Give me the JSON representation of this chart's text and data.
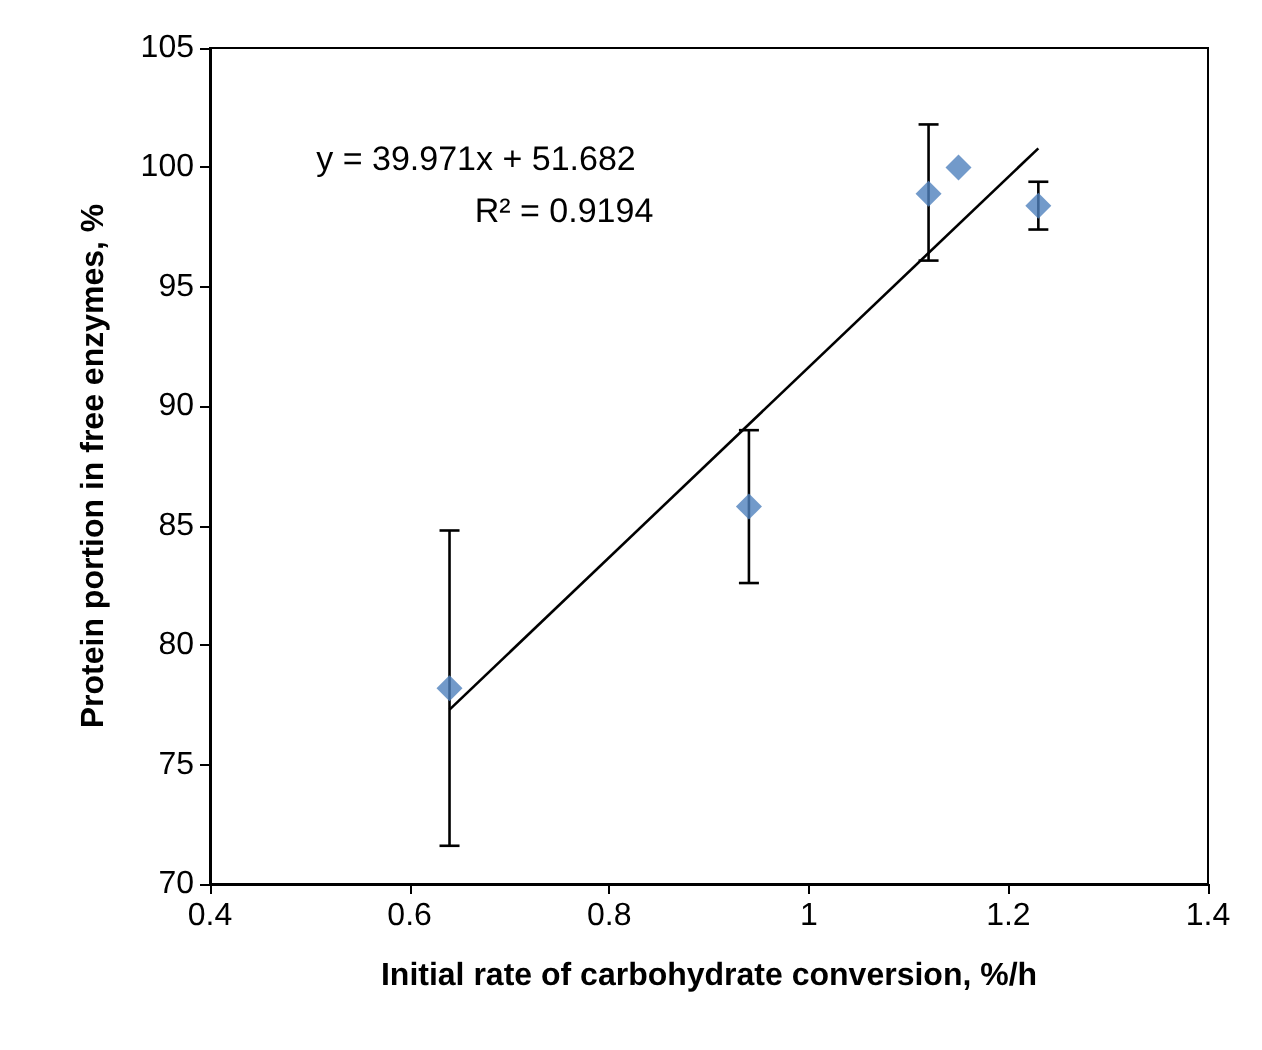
{
  "chart_data": {
    "type": "scatter",
    "xlabel": "Initial rate of carbohydrate conversion, %/h",
    "ylabel": "Protein portion in free enzymes, %",
    "x": [
      0.64,
      0.94,
      1.12,
      1.15,
      1.23
    ],
    "series": [
      {
        "color": "#4f81bd",
        "marker": "diamond",
        "values": [
          78.2,
          85.8,
          98.9,
          100,
          98.4
        ],
        "errors": [
          [
            71.6,
            84.8
          ],
          [
            82.6,
            89.0
          ],
          [
            96.1,
            101.8
          ],
          null,
          [
            97.4,
            99.4
          ]
        ]
      },
      {
        "type": "line",
        "color": "#000000",
        "marker": "none",
        "x": [
          0.64,
          1.23
        ],
        "values": [
          77.3,
          100.8
        ]
      }
    ],
    "xlim": [
      0.4,
      1.4
    ],
    "xticks": [
      0.4,
      0.6,
      0.8,
      1,
      1.2,
      1.4
    ],
    "ylim": [
      70,
      105
    ],
    "yticks": [
      70,
      75,
      80,
      85,
      90,
      95,
      100,
      105
    ],
    "grid": false,
    "annotations": [
      "y = 39.971x + 51.682",
      "R² = 0.9194"
    ]
  }
}
